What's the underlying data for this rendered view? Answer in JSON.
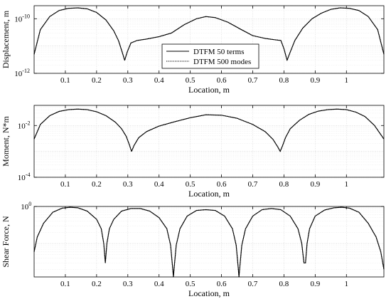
{
  "chart_data": [
    {
      "type": "line",
      "ylabel": "Displacement, m",
      "xlabel": "Location, m",
      "xlim": [
        0,
        1.12
      ],
      "x_ticks": [
        "0.1",
        "0.2",
        "0.3",
        "0.4",
        "0.5",
        "0.6",
        "0.7",
        "0.8",
        "0.9",
        "1"
      ],
      "yscale": "log",
      "ylim": [
        1e-12,
        3e-10
      ],
      "y_ticks": [
        {
          "value": 1e-10,
          "base": "10",
          "exp": "-10"
        },
        {
          "value": 1e-12,
          "base": "10",
          "exp": "-12"
        }
      ],
      "grid": true,
      "legend": {
        "position": "center",
        "entries": [
          "DTFM 50 terms",
          "DTFM 500 modes"
        ]
      },
      "series": [
        {
          "name": "DTFM 50 terms",
          "style": "solid",
          "x": [
            0.0,
            0.02,
            0.05,
            0.08,
            0.11,
            0.14,
            0.17,
            0.2,
            0.23,
            0.255,
            0.27,
            0.282,
            0.29,
            0.298,
            0.31,
            0.33,
            0.36,
            0.4,
            0.44,
            0.48,
            0.52,
            0.55,
            0.58,
            0.62,
            0.66,
            0.7,
            0.74,
            0.77,
            0.79,
            0.8,
            0.81,
            0.82,
            0.835,
            0.86,
            0.89,
            0.92,
            0.95,
            0.98,
            1.01,
            1.04,
            1.07,
            1.1,
            1.12
          ],
          "y": [
            5e-12,
            4e-11,
            1.2e-10,
            2e-10,
            2.4e-10,
            2.5e-10,
            2.3e-10,
            1.7e-10,
            9e-11,
            3.6e-11,
            1.6e-11,
            6e-12,
            3e-12,
            6e-12,
            1.3e-11,
            1.6e-11,
            1.8e-11,
            2.2e-11,
            3e-11,
            6e-11,
            1e-10,
            1.2e-10,
            1.1e-10,
            7.5e-11,
            4.2e-11,
            2.4e-11,
            1.9e-11,
            1.7e-11,
            1.6e-11,
            8e-12,
            3e-12,
            6e-12,
            1.6e-11,
            4.5e-11,
            1e-10,
            1.6e-10,
            2.2e-10,
            2.5e-10,
            2.4e-10,
            2e-10,
            1.2e-10,
            4e-11,
            5e-12
          ]
        },
        {
          "name": "DTFM 500 modes",
          "style": "dotted",
          "same_as": "DTFM 50 terms"
        }
      ]
    },
    {
      "type": "line",
      "ylabel": "Moment, N*m",
      "xlabel": "Location, m",
      "xlim": [
        0,
        1.12
      ],
      "x_ticks": [
        "0.1",
        "0.2",
        "0.3",
        "0.4",
        "0.5",
        "0.6",
        "0.7",
        "0.8",
        "0.9",
        "1"
      ],
      "yscale": "log",
      "ylim": [
        0.0001,
        0.06
      ],
      "y_ticks": [
        {
          "value": 0.01,
          "base": "10",
          "exp": "-2"
        },
        {
          "value": 0.0001,
          "base": "10",
          "exp": "-4"
        }
      ],
      "grid": true,
      "series": [
        {
          "name": "DTFM 50 terms",
          "style": "solid",
          "x": [
            0.0,
            0.02,
            0.05,
            0.08,
            0.11,
            0.14,
            0.17,
            0.2,
            0.23,
            0.26,
            0.28,
            0.295,
            0.305,
            0.312,
            0.32,
            0.335,
            0.36,
            0.4,
            0.45,
            0.5,
            0.55,
            0.6,
            0.65,
            0.7,
            0.74,
            0.765,
            0.78,
            0.788,
            0.795,
            0.805,
            0.82,
            0.85,
            0.88,
            0.91,
            0.94,
            0.97,
            1.0,
            1.03,
            1.06,
            1.09,
            1.12
          ],
          "y": [
            0.003,
            0.011,
            0.024,
            0.035,
            0.041,
            0.043,
            0.041,
            0.034,
            0.024,
            0.0135,
            0.0075,
            0.0038,
            0.0018,
            0.001,
            0.0017,
            0.0034,
            0.0058,
            0.0095,
            0.014,
            0.02,
            0.026,
            0.025,
            0.019,
            0.011,
            0.0058,
            0.0029,
            0.0015,
            0.001,
            0.0016,
            0.0034,
            0.0075,
            0.016,
            0.027,
            0.036,
            0.041,
            0.043,
            0.041,
            0.033,
            0.022,
            0.01,
            0.003
          ]
        },
        {
          "name": "DTFM 500 modes",
          "style": "dotted",
          "same_as": "DTFM 50 terms"
        }
      ]
    },
    {
      "type": "line",
      "ylabel": "Shear Force, N",
      "xlabel": "Location, m",
      "xlim": [
        0,
        1.12
      ],
      "x_ticks": [
        "0.1",
        "0.2",
        "0.3",
        "0.4",
        "0.5",
        "0.6",
        "0.7",
        "0.8",
        "0.9",
        "1"
      ],
      "yscale": "log",
      "ylim": [
        0.0125,
        1.0
      ],
      "y_ticks": [
        {
          "value": 1.0,
          "base": "10",
          "exp": "0"
        }
      ],
      "grid": true,
      "series": [
        {
          "name": "DTFM 50 terms",
          "style": "solid",
          "x": [
            0.0,
            0.01,
            0.03,
            0.06,
            0.09,
            0.115,
            0.14,
            0.17,
            0.2,
            0.215,
            0.223,
            0.228,
            0.233,
            0.241,
            0.255,
            0.28,
            0.31,
            0.34,
            0.37,
            0.4,
            0.425,
            0.437,
            0.443,
            0.446,
            0.449,
            0.455,
            0.467,
            0.49,
            0.52,
            0.55,
            0.58,
            0.61,
            0.635,
            0.647,
            0.653,
            0.656,
            0.659,
            0.665,
            0.677,
            0.7,
            0.73,
            0.76,
            0.79,
            0.82,
            0.845,
            0.857,
            0.864,
            0.869,
            0.874,
            0.882,
            0.9,
            0.93,
            0.96,
            0.985,
            1.01,
            1.04,
            1.07,
            1.095,
            1.11,
            1.12
          ],
          "y": [
            0.06,
            0.15,
            0.35,
            0.7,
            0.9,
            0.95,
            0.92,
            0.75,
            0.45,
            0.25,
            0.1,
            0.03,
            0.1,
            0.25,
            0.45,
            0.75,
            0.88,
            0.88,
            0.75,
            0.5,
            0.25,
            0.09,
            0.025,
            0.01,
            0.025,
            0.09,
            0.25,
            0.55,
            0.78,
            0.82,
            0.78,
            0.55,
            0.25,
            0.09,
            0.025,
            0.01,
            0.025,
            0.09,
            0.25,
            0.55,
            0.82,
            0.88,
            0.82,
            0.55,
            0.25,
            0.1,
            0.03,
            0.03,
            0.1,
            0.25,
            0.55,
            0.8,
            0.92,
            0.95,
            0.9,
            0.7,
            0.35,
            0.15,
            0.06,
            0.02
          ]
        },
        {
          "name": "DTFM 500 modes",
          "style": "dotted",
          "same_as": "DTFM 50 terms"
        }
      ]
    }
  ]
}
